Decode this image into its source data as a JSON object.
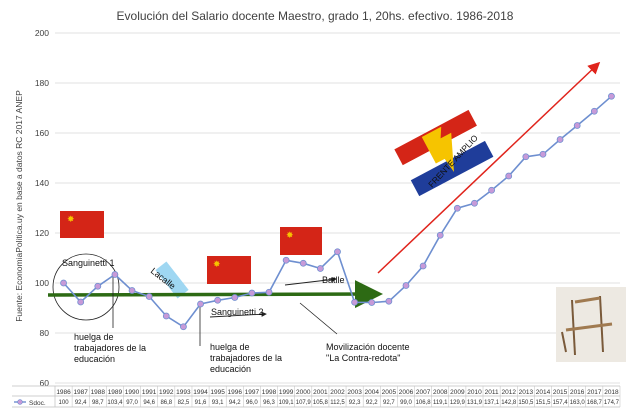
{
  "chart_data": {
    "type": "line",
    "title": "Evolución del Salario docente Maestro, grado 1, 20hs. efectivo. 1986-2018",
    "source_label": "Fuente: EconomiaPolitica.uy en base a datos RC 2017 ANEP",
    "ylim": [
      60,
      200
    ],
    "yticks": [
      60,
      80,
      100,
      120,
      140,
      160,
      180,
      200
    ],
    "grid": true,
    "x": [
      "1986",
      "1987",
      "1988",
      "1989",
      "1990",
      "1991",
      "1992",
      "1993",
      "1994",
      "1995",
      "1996",
      "1997",
      "1998",
      "1999",
      "2000",
      "2001",
      "2002",
      "2003",
      "2004",
      "2005",
      "2006",
      "2007",
      "2008",
      "2009",
      "2010",
      "2011",
      "2012",
      "2013",
      "2014",
      "2015",
      "2016",
      "2017",
      "2018"
    ],
    "series": [
      {
        "name": "Sdoc.",
        "color": "#6e8fd0",
        "marker_color": "#c79ad8",
        "values": [
          100,
          92.4,
          98.7,
          103.4,
          97.0,
          94.6,
          86.8,
          82.5,
          91.6,
          93.1,
          94.2,
          96.0,
          96.3,
          109.1,
          107.9,
          105.8,
          112.5,
          92.3,
          92.2,
          92.7,
          99.0,
          106.8,
          119.1,
          129.9,
          131.9,
          137.1,
          142.8,
          150.5,
          151.5,
          157.4,
          163.0,
          168.7,
          174.7
        ],
        "labels": [
          "100",
          "92,4",
          "98,7",
          "103,4",
          "97,0",
          "94,6",
          "86,8",
          "82,5",
          "91,6",
          "93,1",
          "94,2",
          "96,0",
          "96,3",
          "109,1",
          "107,9",
          "105,8",
          "112,5",
          "92,3",
          "92,2",
          "92,7",
          "99,0",
          "106,8",
          "119,1",
          "129,9",
          "131,9",
          "137,1",
          "142,8",
          "150,5",
          "151,5",
          "157,4",
          "163,0",
          "168,7",
          "174,7"
        ]
      }
    ],
    "annotations": {
      "sanguinetti1": "Sanguinetti 1",
      "lacalle": "Lacalle",
      "sanguinetti2": "Sanguinetti 2",
      "batlle": "Batlle",
      "frente_amplio": "FRENTE AMPLIO",
      "huelga1": [
        "huelga de",
        "trabajadores de la",
        "educación"
      ],
      "huelga2": [
        "huelga de",
        "trabajadores de la",
        "educación"
      ],
      "movilizacion": [
        "Movilización docente",
        "\"La Contra-redota\""
      ]
    },
    "colors": {
      "trend_green": "#2d6a14",
      "trend_red": "#e0241c",
      "flag_red": "#d42517",
      "flag_blue": "#1f3d9a",
      "flag_star": "#f6c400",
      "lacalle_blue": "#9fd7f2"
    }
  }
}
